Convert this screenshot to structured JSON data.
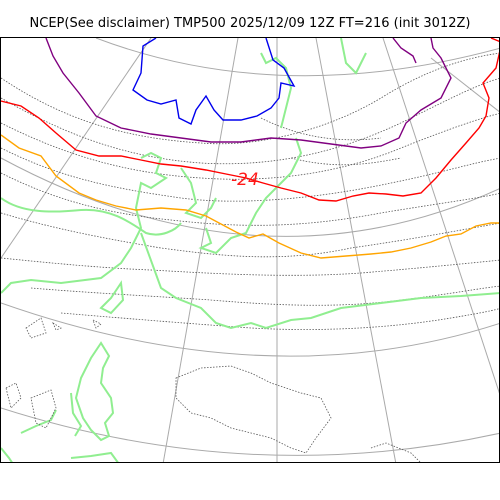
{
  "header": {
    "title": "NCEP(See disclaimer) TMP500 2025/12/09 12Z FT=216 (init 3012Z)"
  },
  "map": {
    "isotherm_label": "-24",
    "colors": {
      "coast": "#90ee90",
      "grid": "#aaaaaa",
      "contour": "#555555",
      "blue": "#0000ee",
      "purple": "#800080",
      "red": "#ff0000",
      "orange": "#ffa500"
    }
  }
}
